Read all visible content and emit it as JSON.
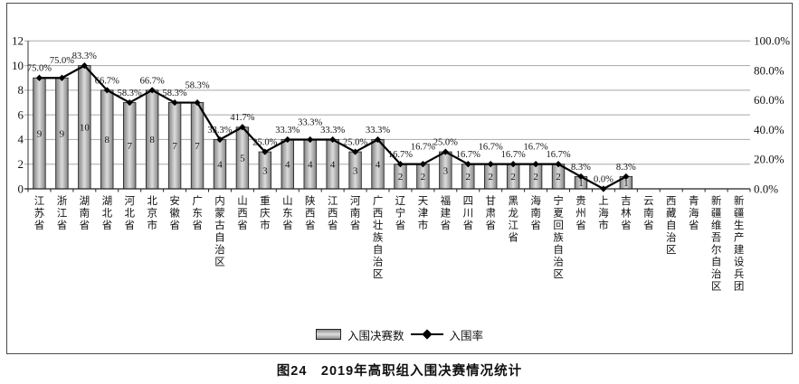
{
  "chart_data": {
    "type": "bar+line",
    "categories": [
      "江苏省",
      "浙江省",
      "湖南省",
      "湖北省",
      "河北省",
      "北京市",
      "安徽省",
      "广东省",
      "内蒙古自治区",
      "山西省",
      "重庆市",
      "山东省",
      "陕西省",
      "江西省",
      "河南省",
      "广西壮族自治区",
      "辽宁省",
      "天津市",
      "福建省",
      "四川省",
      "甘肃省",
      "黑龙江省",
      "海南省",
      "宁夏回族自治区",
      "贵州省",
      "上海市",
      "吉林省",
      "云南省",
      "西藏自治区",
      "青海省",
      "新疆维吾尔自治区",
      "新疆生产建设兵团"
    ],
    "series": [
      {
        "name": "入围决赛数",
        "type": "bar",
        "axis": "left",
        "values": [
          9,
          9,
          10,
          8,
          7,
          8,
          7,
          7,
          4,
          5,
          3,
          4,
          4,
          4,
          3,
          4,
          2,
          2,
          3,
          2,
          2,
          2,
          2,
          2,
          1,
          0,
          1,
          null,
          null,
          null,
          null,
          null
        ]
      },
      {
        "name": "入围率",
        "type": "line",
        "axis": "right",
        "unit": "%",
        "values": [
          75.0,
          75.0,
          83.3,
          66.7,
          58.3,
          66.7,
          58.3,
          58.3,
          33.3,
          41.7,
          25.0,
          33.3,
          33.3,
          33.3,
          25.0,
          33.3,
          16.7,
          16.7,
          25.0,
          16.7,
          16.7,
          16.7,
          16.7,
          16.7,
          8.3,
          0.0,
          8.3,
          null,
          null,
          null,
          null,
          null
        ]
      }
    ],
    "left_axis": {
      "min": 0,
      "max": 12,
      "tick_labels": [
        "12",
        "10",
        "8",
        "6",
        "4",
        "2",
        "0"
      ]
    },
    "right_axis": {
      "min": 0,
      "max": 100,
      "tick_labels": [
        "100.0%",
        "80.0%",
        "60.0%",
        "40.0%",
        "20.0%",
        "0.0%"
      ]
    },
    "legend": {
      "bar_label": "入围决赛数",
      "line_label": "入围率",
      "position": "bottom"
    },
    "caption": "图24　2019年高职组入围决赛情况统计",
    "grid": "horizontal",
    "colors": {
      "bar_edge": "#2a2a2a",
      "bar_dark": "#838383",
      "bar_light": "#dcdcdc",
      "line": "#000000",
      "gridline": "#a8a8a8",
      "text": "#111111"
    }
  }
}
